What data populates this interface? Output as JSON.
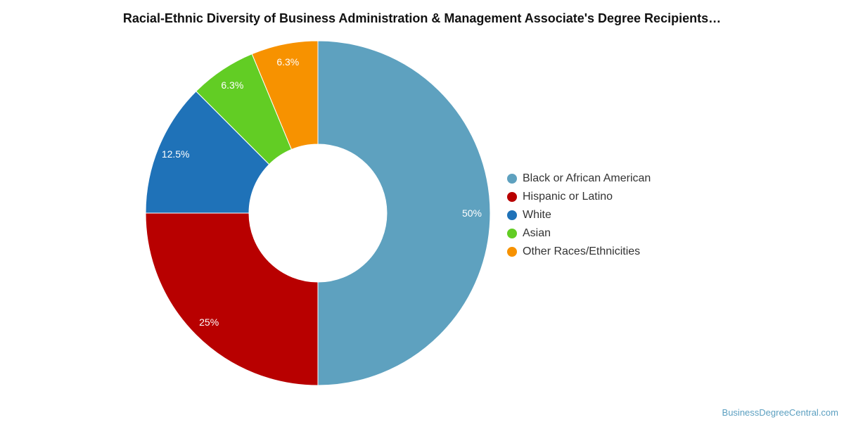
{
  "chart_data": {
    "type": "pie",
    "title": "Racial-Ethnic Diversity of Business Administration & Management Associate's Degree Recipients…",
    "categories": [
      "Black or African American",
      "Hispanic or Latino",
      "White",
      "Asian",
      "Other Races/Ethnicities"
    ],
    "values": [
      50,
      25,
      12.5,
      6.25,
      6.25
    ],
    "labels": [
      "50%",
      "25%",
      "12.5%",
      "6.3%",
      "6.3%"
    ],
    "colors": [
      "#5ea1bf",
      "#b80000",
      "#1f72b8",
      "#62cd24",
      "#f79200"
    ],
    "donut": true,
    "legend_position": "right"
  },
  "watermark": "BusinessDegreeCentral.com"
}
